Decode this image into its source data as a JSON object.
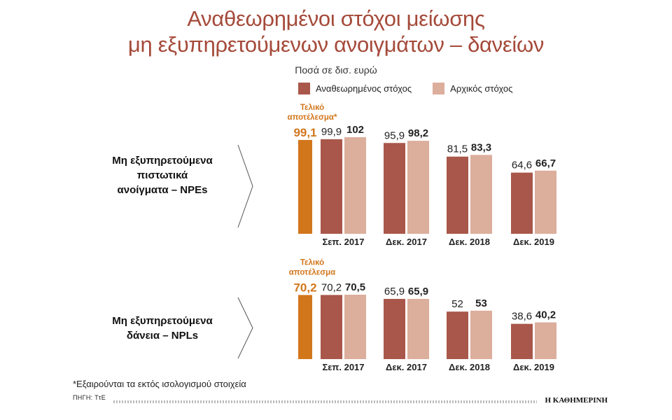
{
  "header": {
    "title_line1": "Αναθεωρημένοι στόχοι μείωσης",
    "title_line2": "μη εξυπηρετούμενων ανοιγμάτων – δανείων",
    "subtitle": "Ποσά σε δισ. ευρώ"
  },
  "legend": {
    "revised": "Αναθεωρημένος στόχος",
    "original": "Αρχικός στόχος"
  },
  "colors": {
    "revised": "#a9574a",
    "original": "#dcae9c",
    "actual": "#d2761c",
    "title": "#a54a3a"
  },
  "chart_data": [
    {
      "type": "bar",
      "group_label_lines": [
        "Μη εξυπηρετούμενα",
        "πιστωτικά",
        "ανοίγματα – NPEs"
      ],
      "final_result_label_lines": [
        "Τελικό",
        "αποτέλεσμα*"
      ],
      "final_result_value": 99.1,
      "final_result_text": "99,1",
      "categories": [
        "Σεπ. 2017",
        "Δεκ. 2017",
        "Δεκ. 2018",
        "Δεκ. 2019"
      ],
      "series": [
        {
          "name": "Αναθεωρημένος στόχος",
          "values": [
            99.9,
            95.9,
            81.5,
            64.6
          ],
          "labels": [
            "99,9",
            "95,9",
            "81,5",
            "64,6"
          ]
        },
        {
          "name": "Αρχικός στόχος",
          "values": [
            102,
            98.2,
            83.3,
            66.7
          ],
          "labels": [
            "102",
            "98,2",
            "83,3",
            "66,7"
          ]
        }
      ]
    },
    {
      "type": "bar",
      "group_label_lines": [
        "Μη εξυπηρετούμενα",
        "δάνεια – NPLs"
      ],
      "final_result_label_lines": [
        "Τελικό",
        "αποτέλεσμα"
      ],
      "final_result_value": 70.2,
      "final_result_text": "70,2",
      "categories": [
        "Σεπ. 2017",
        "Δεκ. 2017",
        "Δεκ. 2018",
        "Δεκ. 2019"
      ],
      "series": [
        {
          "name": "Αναθεωρημένος στόχος",
          "values": [
            70.2,
            65.9,
            52,
            38.6
          ],
          "labels": [
            "70,2",
            "65,9",
            "52",
            "38,6"
          ]
        },
        {
          "name": "Αρχικός στόχος",
          "values": [
            70.5,
            65.9,
            53,
            40.2
          ],
          "labels": [
            "70,5",
            "65,9",
            "53",
            "40,2"
          ]
        }
      ]
    }
  ],
  "footer": {
    "footnote": "*Εξαιρούνται τα εκτός ισολογισμού στοιχεία",
    "source": "ΠΗΓΗ: ΤτΕ",
    "brand": "Η ΚΑΘΗΜΕΡΙΝΗ"
  }
}
